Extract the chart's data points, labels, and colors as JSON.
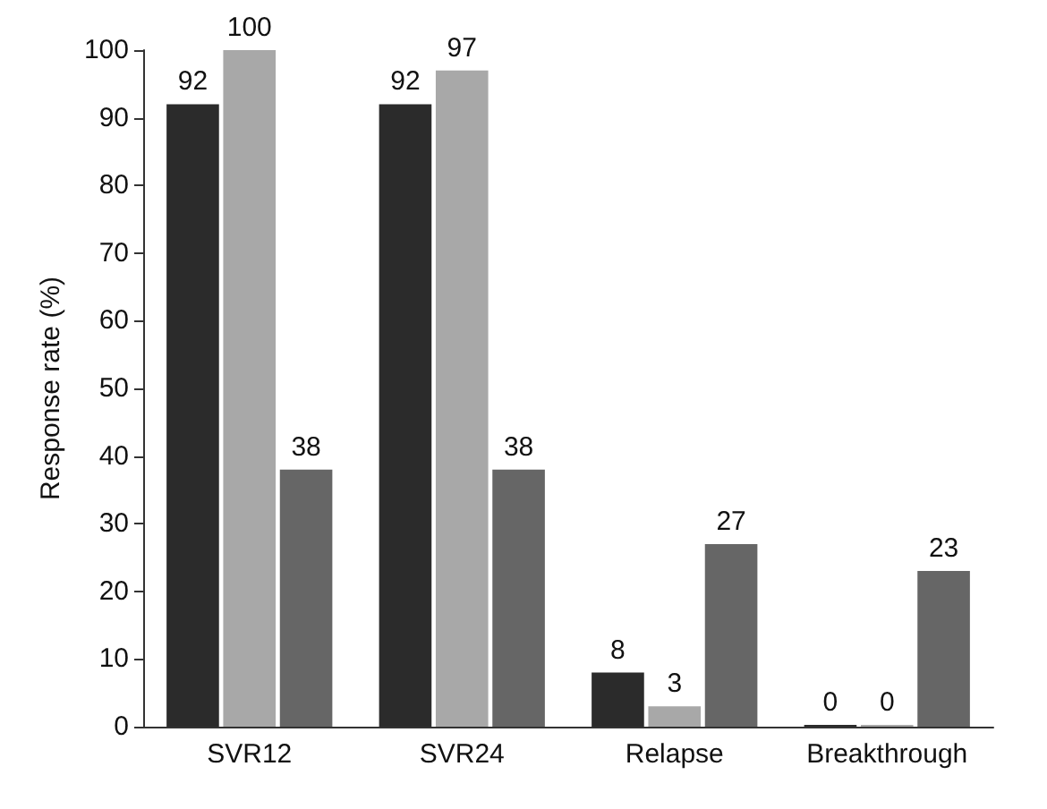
{
  "chart_data": {
    "type": "bar",
    "ylabel": "Response rate (%)",
    "categories": [
      "SVR12",
      "SVR24",
      "Relapse",
      "Breakthrough"
    ],
    "series": [
      {
        "color": "#2b2b2b",
        "values": [
          92,
          92,
          8,
          0
        ]
      },
      {
        "color": "#a8a8a8",
        "values": [
          100,
          97,
          3,
          0
        ]
      },
      {
        "color": "#666666",
        "values": [
          38,
          38,
          27,
          23
        ]
      }
    ],
    "ylim": [
      0,
      100
    ],
    "yticks": [
      0,
      10,
      20,
      30,
      40,
      50,
      60,
      70,
      80,
      90,
      100
    ],
    "grid": false,
    "data_labels": true
  }
}
